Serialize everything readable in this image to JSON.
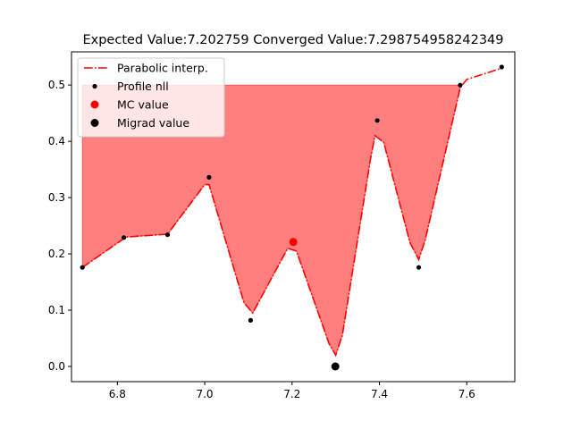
{
  "chart_data": {
    "type": "line",
    "title": "Expected Value:7.202759 Converged Value:7.298754958242349",
    "xlabel": "",
    "ylabel": "",
    "xlim": [
      6.695,
      7.71
    ],
    "ylim": [
      -0.027,
      0.559
    ],
    "xticks": [
      6.8,
      7.0,
      7.2,
      7.4,
      7.6
    ],
    "xtick_labels": [
      "6.8",
      "7.0",
      "7.2",
      "7.4",
      "7.6"
    ],
    "yticks": [
      0.0,
      0.1,
      0.2,
      0.3,
      0.4,
      0.5
    ],
    "ytick_labels": [
      "0.0",
      "0.1",
      "0.2",
      "0.3",
      "0.4",
      "0.5"
    ],
    "grid": false,
    "legend_placement": "top-left",
    "fill_level": 0.5,
    "series": [
      {
        "name": "Parabolic interp.",
        "kind": "line",
        "style": "dash-dot",
        "color": "#ff0000",
        "x": [
          6.72,
          6.82,
          6.915,
          7.0,
          7.01,
          7.09,
          7.11,
          7.19,
          7.21,
          7.285,
          7.3,
          7.315,
          7.38,
          7.39,
          7.41,
          7.47,
          7.49,
          7.505,
          7.585,
          7.6,
          7.68
        ],
        "y": [
          0.176,
          0.23,
          0.235,
          0.323,
          0.323,
          0.113,
          0.095,
          0.21,
          0.205,
          0.04,
          0.02,
          0.055,
          0.37,
          0.41,
          0.398,
          0.22,
          0.19,
          0.225,
          0.495,
          0.51,
          0.53
        ]
      },
      {
        "name": "Profile nll",
        "kind": "scatter",
        "color": "#000000",
        "x": [
          6.72,
          6.815,
          6.915,
          7.01,
          7.105,
          7.395,
          7.49,
          7.585,
          7.68
        ],
        "y": [
          0.176,
          0.229,
          0.234,
          0.336,
          0.082,
          0.437,
          0.176,
          0.5,
          0.532
        ]
      },
      {
        "name": "MC value",
        "kind": "scatter",
        "color": "#ff0000",
        "x": [
          7.203
        ],
        "y": [
          0.221
        ]
      },
      {
        "name": "Migrad value",
        "kind": "scatter",
        "color": "#000000",
        "x": [
          7.299
        ],
        "y": [
          0.0
        ]
      }
    ]
  }
}
